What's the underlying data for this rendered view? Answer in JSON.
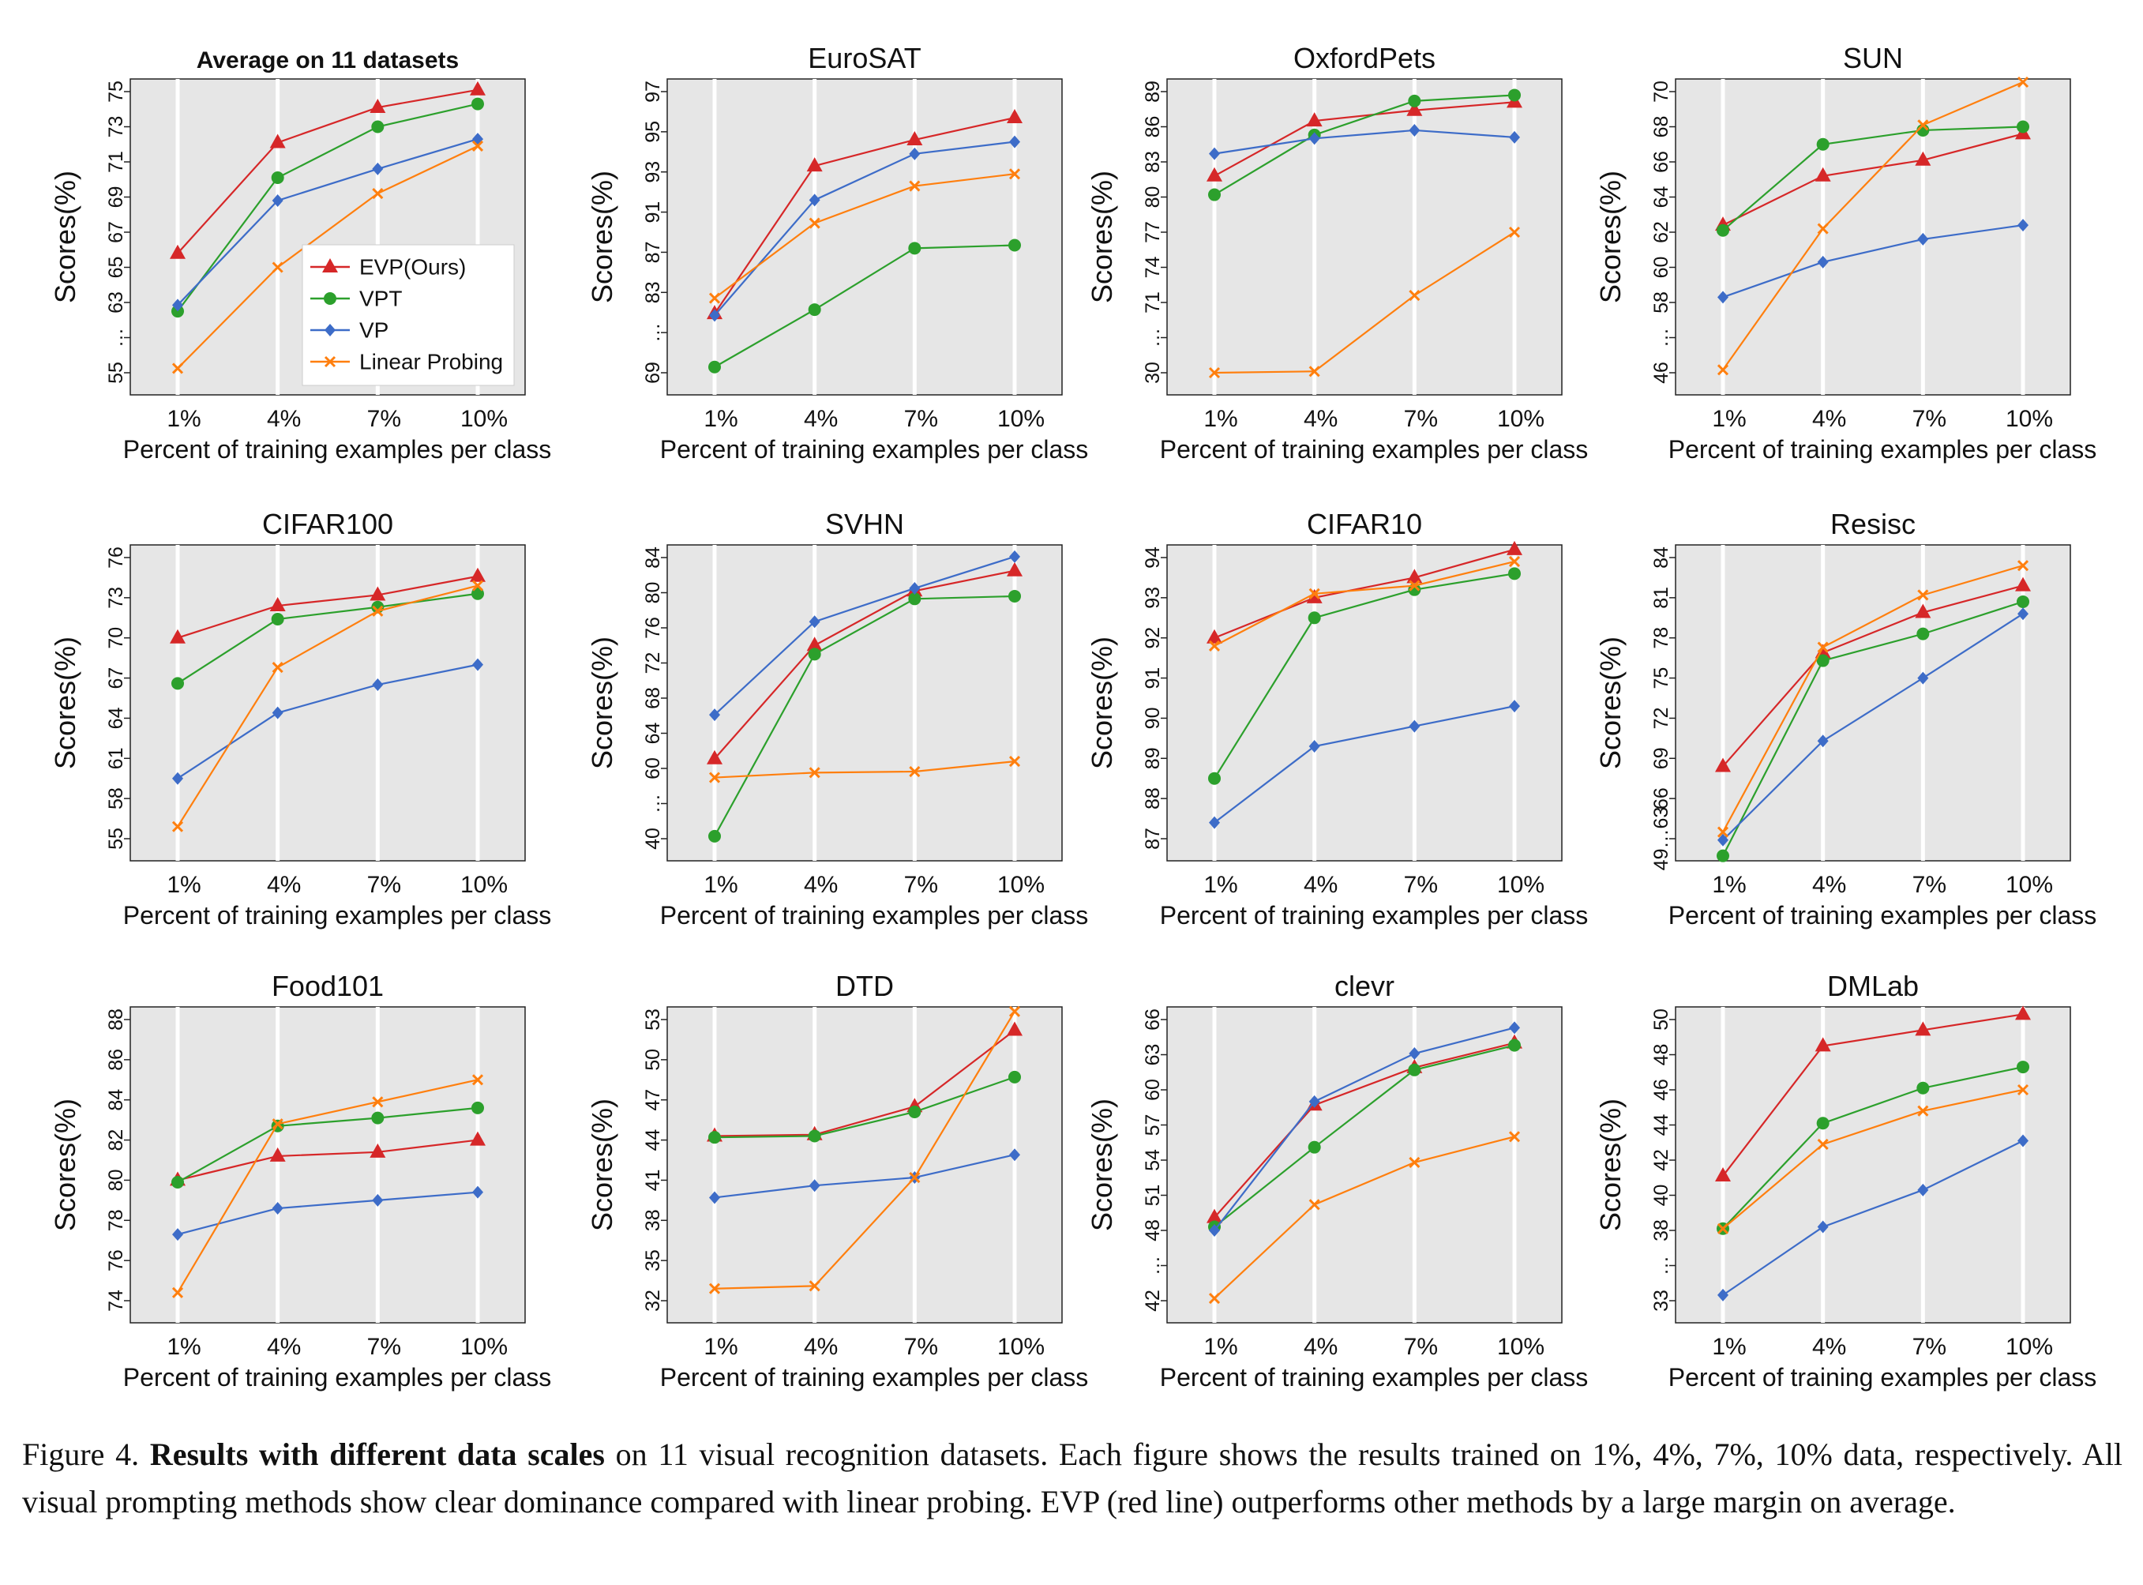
{
  "figure": {
    "caption_label": "Figure 4.",
    "caption_bold": "Results with different data scales",
    "caption_text": " on 11 visual recognition datasets. Each figure shows the results trained on 1%, 4%, 7%, 10% data, respectively. All visual prompting methods show clear dominance compared with linear probing. EVP (red line) outperforms other methods by a large margin on average."
  },
  "colors": {
    "EVP": "#d62728",
    "VPT": "#2ca02c",
    "VP": "#3d6cc8",
    "LP": "#ff7f0e",
    "panel_bg": "#e6e6e6",
    "grid": "#ffffff"
  },
  "chart_data": [
    {
      "type": "line",
      "title": "Average on 11 datasets",
      "title_bold": true,
      "categories": [
        "1%",
        "4%",
        "7%",
        "10%"
      ],
      "xlabel": "Percent of training examples per class",
      "ylabel": "Scores(%)",
      "yticks": [
        "55",
        "…",
        "63",
        "65",
        "67",
        "69",
        "71",
        "73",
        "75"
      ],
      "ylim": [
        55,
        75
      ],
      "break_tick": "…",
      "legend": [
        "EVP(Ours)",
        "VPT",
        "VP",
        "Linear Probing"
      ],
      "legend_position": "center-right",
      "series": [
        {
          "name": "EVP(Ours)",
          "values": [
            65.8,
            72.1,
            74.1,
            75.1
          ]
        },
        {
          "name": "VPT",
          "values": [
            62.0,
            70.1,
            73.0,
            74.3
          ]
        },
        {
          "name": "VP",
          "values": [
            62.7,
            68.8,
            70.6,
            72.3
          ]
        },
        {
          "name": "Linear Probing",
          "values": [
            55.5,
            65.0,
            69.2,
            71.9
          ]
        }
      ]
    },
    {
      "type": "line",
      "title": "EuroSAT",
      "categories": [
        "1%",
        "4%",
        "7%",
        "10%"
      ],
      "xlabel": "Percent of training examples per class",
      "ylabel": "Scores(%)",
      "yticks": [
        "69",
        "…",
        "83",
        "87",
        "91",
        "93",
        "95",
        "97"
      ],
      "ylim": [
        69,
        97
      ],
      "break_tick": "…",
      "series": [
        {
          "name": "EVP(Ours)",
          "values": [
            79.3,
            93.3,
            94.6,
            95.7
          ]
        },
        {
          "name": "VPT",
          "values": [
            70.0,
            80.0,
            87.4,
            87.7
          ]
        },
        {
          "name": "VP",
          "values": [
            79.0,
            91.6,
            93.9,
            94.5
          ]
        },
        {
          "name": "Linear Probing",
          "values": [
            82.0,
            89.9,
            92.3,
            92.9
          ]
        }
      ]
    },
    {
      "type": "line",
      "title": "OxfordPets",
      "categories": [
        "1%",
        "4%",
        "7%",
        "10%"
      ],
      "xlabel": "Percent of training examples per class",
      "ylabel": "Scores(%)",
      "yticks": [
        "30",
        "…",
        "71",
        "74",
        "77",
        "80",
        "83",
        "86",
        "89"
      ],
      "ylim": [
        30,
        89
      ],
      "break_tick": "…",
      "series": [
        {
          "name": "EVP(Ours)",
          "values": [
            81.8,
            86.5,
            87.4,
            88.1
          ]
        },
        {
          "name": "VPT",
          "values": [
            80.2,
            85.3,
            88.2,
            88.7
          ]
        },
        {
          "name": "VP",
          "values": [
            83.7,
            85.0,
            85.7,
            85.1
          ]
        },
        {
          "name": "Linear Probing",
          "values": [
            30.0,
            30.8,
            71.6,
            77.0
          ]
        }
      ]
    },
    {
      "type": "line",
      "title": "SUN",
      "categories": [
        "1%",
        "4%",
        "7%",
        "10%"
      ],
      "xlabel": "Percent of training examples per class",
      "ylabel": "Scores(%)",
      "yticks": [
        "46",
        "…",
        "58",
        "60",
        "62",
        "64",
        "66",
        "68",
        "70"
      ],
      "ylim": [
        46,
        70
      ],
      "break_tick": "…",
      "series": [
        {
          "name": "EVP(Ours)",
          "values": [
            62.4,
            65.2,
            66.1,
            67.6
          ]
        },
        {
          "name": "VPT",
          "values": [
            62.1,
            67.0,
            67.8,
            68.0
          ]
        },
        {
          "name": "VP",
          "values": [
            58.3,
            60.3,
            61.6,
            62.4
          ]
        },
        {
          "name": "Linear Probing",
          "values": [
            46.5,
            62.2,
            68.1,
            70.8
          ]
        }
      ]
    },
    {
      "type": "line",
      "title": "CIFAR100",
      "categories": [
        "1%",
        "4%",
        "7%",
        "10%"
      ],
      "xlabel": "Percent of training examples per class",
      "ylabel": "Scores(%)",
      "yticks": [
        "55",
        "58",
        "61",
        "64",
        "67",
        "70",
        "73",
        "76"
      ],
      "ylim": [
        55,
        76
      ],
      "series": [
        {
          "name": "EVP(Ours)",
          "values": [
            70.0,
            72.4,
            73.2,
            74.6
          ]
        },
        {
          "name": "VPT",
          "values": [
            66.6,
            71.4,
            72.3,
            73.3
          ]
        },
        {
          "name": "VP",
          "values": [
            59.5,
            64.4,
            66.5,
            68.0
          ]
        },
        {
          "name": "Linear Probing",
          "values": [
            55.9,
            67.8,
            72.0,
            73.9
          ]
        }
      ]
    },
    {
      "type": "line",
      "title": "SVHN",
      "categories": [
        "1%",
        "4%",
        "7%",
        "10%"
      ],
      "xlabel": "Percent of training examples per class",
      "ylabel": "Scores(%)",
      "yticks": [
        "40",
        "…",
        "60",
        "64",
        "68",
        "72",
        "76",
        "80",
        "84"
      ],
      "ylim": [
        40,
        84
      ],
      "break_tick": "…",
      "series": [
        {
          "name": "EVP(Ours)",
          "values": [
            61.1,
            74.0,
            80.2,
            82.5
          ]
        },
        {
          "name": "VPT",
          "values": [
            40.7,
            73.0,
            79.3,
            79.6
          ]
        },
        {
          "name": "VP",
          "values": [
            66.1,
            76.7,
            80.5,
            84.1
          ]
        },
        {
          "name": "Linear Probing",
          "values": [
            57.4,
            58.8,
            59.1,
            60.8
          ]
        }
      ]
    },
    {
      "type": "line",
      "title": "CIFAR10",
      "categories": [
        "1%",
        "4%",
        "7%",
        "10%"
      ],
      "xlabel": "Percent of training examples per class",
      "ylabel": "Scores(%)",
      "yticks": [
        "87",
        "88",
        "89",
        "90",
        "91",
        "92",
        "93",
        "94"
      ],
      "ylim": [
        86.7,
        94
      ],
      "series": [
        {
          "name": "EVP(Ours)",
          "values": [
            92.0,
            93.0,
            93.5,
            94.2
          ]
        },
        {
          "name": "VPT",
          "values": [
            88.5,
            92.5,
            93.2,
            93.6
          ]
        },
        {
          "name": "VP",
          "values": [
            87.4,
            89.3,
            89.8,
            90.3
          ]
        },
        {
          "name": "Linear Probing",
          "values": [
            91.8,
            93.1,
            93.3,
            93.9
          ]
        }
      ]
    },
    {
      "type": "line",
      "title": "Resisc",
      "categories": [
        "1%",
        "4%",
        "7%",
        "10%"
      ],
      "xlabel": "Percent of training examples per class",
      "ylabel": "Scores(%)",
      "yticks": [
        "49…63",
        "66",
        "69",
        "72",
        "75",
        "78",
        "81",
        "84"
      ],
      "ylim": [
        60,
        84
      ],
      "break_tick": "49…63",
      "series": [
        {
          "name": "EVP(Ours)",
          "values": [
            68.4,
            76.9,
            79.9,
            81.9
          ]
        },
        {
          "name": "VPT",
          "values": [
            49.2,
            76.3,
            78.3,
            80.7
          ]
        },
        {
          "name": "VP",
          "values": [
            61.9,
            70.3,
            75.0,
            79.8
          ]
        },
        {
          "name": "Linear Probing",
          "values": [
            63.5,
            77.3,
            81.2,
            83.4
          ]
        }
      ]
    },
    {
      "type": "line",
      "title": "Food101",
      "categories": [
        "1%",
        "4%",
        "7%",
        "10%"
      ],
      "xlabel": "Percent of training examples per class",
      "ylabel": "Scores(%)",
      "yticks": [
        "74",
        "76",
        "78",
        "80",
        "82",
        "84",
        "86",
        "88"
      ],
      "ylim": [
        73,
        88.8
      ],
      "series": [
        {
          "name": "EVP(Ours)",
          "values": [
            80.0,
            81.2,
            81.4,
            82.0
          ]
        },
        {
          "name": "VPT",
          "values": [
            79.9,
            82.7,
            83.1,
            83.6
          ]
        },
        {
          "name": "VP",
          "values": [
            77.3,
            78.6,
            79.0,
            79.4
          ]
        },
        {
          "name": "Linear Probing",
          "values": [
            74.4,
            82.8,
            83.9,
            85.0
          ]
        }
      ]
    },
    {
      "type": "line",
      "title": "DTD",
      "categories": [
        "1%",
        "4%",
        "7%",
        "10%"
      ],
      "xlabel": "Percent of training examples per class",
      "ylabel": "Scores(%)",
      "yticks": [
        "32",
        "35",
        "38",
        "41",
        "44",
        "47",
        "50",
        "53"
      ],
      "ylim": [
        31,
        54
      ],
      "series": [
        {
          "name": "EVP(Ours)",
          "values": [
            44.3,
            44.4,
            46.5,
            52.2
          ]
        },
        {
          "name": "VPT",
          "values": [
            44.2,
            44.3,
            46.1,
            48.7
          ]
        },
        {
          "name": "VP",
          "values": [
            39.7,
            40.6,
            41.2,
            42.9
          ]
        },
        {
          "name": "Linear Probing",
          "values": [
            32.9,
            33.1,
            41.2,
            53.6
          ]
        }
      ]
    },
    {
      "type": "line",
      "title": "clevr",
      "categories": [
        "1%",
        "4%",
        "7%",
        "10%"
      ],
      "xlabel": "Percent of training examples per class",
      "ylabel": "Scores(%)",
      "yticks": [
        "42",
        "…",
        "48",
        "51",
        "54",
        "57",
        "60",
        "63",
        "66"
      ],
      "ylim": [
        42,
        66
      ],
      "break_tick": "…",
      "series": [
        {
          "name": "EVP(Ours)",
          "values": [
            49.1,
            58.7,
            61.9,
            64.0
          ]
        },
        {
          "name": "VPT",
          "values": [
            48.3,
            55.1,
            61.7,
            63.8
          ]
        },
        {
          "name": "VP",
          "values": [
            48.0,
            59.0,
            63.1,
            65.3
          ]
        },
        {
          "name": "Linear Probing",
          "values": [
            42.2,
            50.2,
            53.8,
            56.0
          ]
        }
      ]
    },
    {
      "type": "line",
      "title": "DMLab",
      "categories": [
        "1%",
        "4%",
        "7%",
        "10%"
      ],
      "xlabel": "Percent of training examples per class",
      "ylabel": "Scores(%)",
      "yticks": [
        "33",
        "…",
        "38",
        "40",
        "42",
        "44",
        "46",
        "48",
        "50"
      ],
      "ylim": [
        33,
        50.3
      ],
      "break_tick": "…",
      "series": [
        {
          "name": "EVP(Ours)",
          "values": [
            41.1,
            48.5,
            49.4,
            50.3
          ]
        },
        {
          "name": "VPT",
          "values": [
            38.1,
            44.1,
            46.1,
            47.3
          ]
        },
        {
          "name": "VP",
          "values": [
            33.4,
            38.2,
            40.3,
            43.1
          ]
        },
        {
          "name": "Linear Probing",
          "values": [
            38.1,
            42.9,
            44.8,
            46.0
          ]
        }
      ]
    }
  ]
}
